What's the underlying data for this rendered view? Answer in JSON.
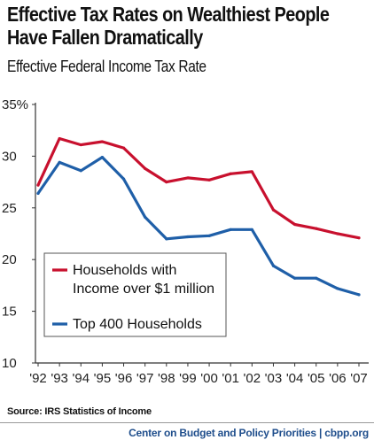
{
  "chart_data": {
    "type": "line",
    "title_lines": [
      "Effective Tax Rates on Wealthiest People",
      "Have Fallen Dramatically"
    ],
    "subtitle": "Effective Federal Income Tax Rate",
    "x": [
      "'92",
      "'93",
      "'94",
      "'95",
      "'96",
      "'97",
      "'98",
      "'99",
      "'00",
      "'01",
      "'02",
      "'03",
      "'04",
      "'05",
      "'06",
      "'07"
    ],
    "y_ticks": [
      "35%",
      "30",
      "25",
      "20",
      "15",
      "10"
    ],
    "ylim": [
      10,
      35
    ],
    "series": [
      {
        "name": "Households with Income over $1 million",
        "legend_lines": [
          "Households with",
          "Income over $1 million"
        ],
        "color": "#c8102e",
        "values": [
          27.2,
          31.7,
          31.1,
          31.4,
          30.8,
          28.8,
          27.5,
          27.9,
          27.7,
          28.3,
          28.5,
          24.8,
          23.4,
          23.0,
          22.5,
          22.1
        ]
      },
      {
        "name": "Top 400 Households",
        "legend_lines": [
          "Top 400 Households"
        ],
        "color": "#1f5fa8",
        "values": [
          26.4,
          29.4,
          28.6,
          29.9,
          27.8,
          24.1,
          22.0,
          22.2,
          22.3,
          22.9,
          22.9,
          19.4,
          18.2,
          18.2,
          17.2,
          16.6
        ]
      }
    ],
    "grid": false,
    "legend_position": "bottom-left inside"
  },
  "source": "Source: IRS Statistics of Income",
  "footer": "Center on Budget and Policy Priorities | cbpp.org"
}
